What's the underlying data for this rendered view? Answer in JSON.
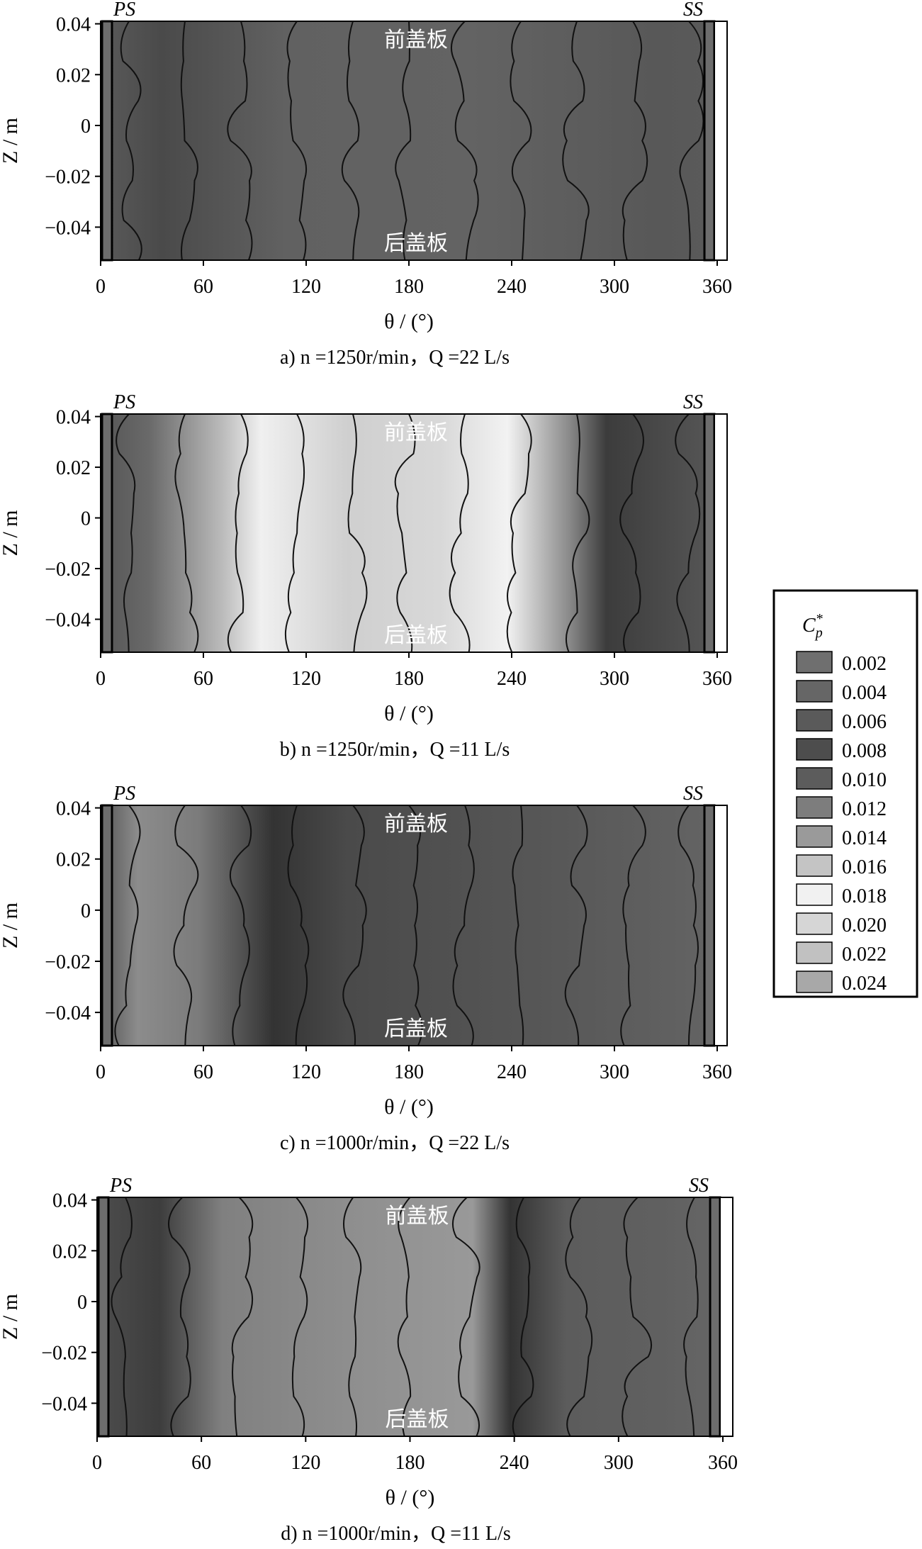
{
  "chart_data": [
    {
      "type": "heatmap",
      "caption": "a) n =1250r/min，Q =22 L/s",
      "xlabel": "θ / (°)",
      "ylabel": "Z / m",
      "xlim": [
        0,
        360
      ],
      "ylim": [
        -0.053,
        0.041
      ],
      "xticks": [
        "0",
        "60",
        "120",
        "180",
        "240",
        "300",
        "360"
      ],
      "yticks": [
        "0.04",
        "0.02",
        "0",
        "−0.02",
        "−0.04"
      ],
      "side_labels": {
        "left": "PS",
        "right": "SS"
      },
      "plate_labels": {
        "top": "前盖板",
        "bottom": "后盖板"
      },
      "background": "#606060",
      "contours": [
        [
          3,
          0.041
        ],
        [
          8,
          0.041
        ],
        [
          10,
          0.041
        ],
        [
          10,
          -0.053
        ],
        [
          60,
          0.041
        ],
        [
          75,
          -0.053
        ],
        [
          120,
          -0.053
        ]
      ]
    },
    {
      "type": "heatmap",
      "caption": "b) n =1250r/min，Q =11 L/s",
      "xlabel": "θ / (°)",
      "ylabel": "Z / m",
      "xlim": [
        0,
        360
      ],
      "ylim": [
        -0.053,
        0.041
      ],
      "xticks": [
        "0",
        "60",
        "120",
        "180",
        "240",
        "300",
        "360"
      ],
      "yticks": [
        "0.04",
        "0.02",
        "0",
        "−0.02",
        "−0.04"
      ],
      "side_labels": {
        "left": "PS",
        "right": "SS"
      },
      "plate_labels": {
        "top": "前盖板",
        "bottom": "后盖板"
      },
      "background": "#5a5a5a",
      "contours": []
    },
    {
      "type": "heatmap",
      "caption": "c) n =1000r/min，Q =22 L/s",
      "xlabel": "θ / (°)",
      "ylabel": "Z / m",
      "xlim": [
        0,
        360
      ],
      "ylim": [
        -0.053,
        0.041
      ],
      "xticks": [
        "0",
        "60",
        "120",
        "180",
        "240",
        "300",
        "360"
      ],
      "yticks": [
        "0.04",
        "0.02",
        "0",
        "−0.02",
        "−0.04"
      ],
      "side_labels": {
        "left": "PS",
        "right": "SS"
      },
      "plate_labels": {
        "top": "前盖板",
        "bottom": "后盖板"
      },
      "background": "#5e5e5e",
      "contours": []
    },
    {
      "type": "heatmap",
      "caption": "d) n =1000r/min，Q =11 L/s",
      "xlabel": "θ / (°)",
      "ylabel": "Z / m",
      "xlim": [
        0,
        360
      ],
      "ylim": [
        -0.053,
        0.041
      ],
      "xticks": [
        "0",
        "60",
        "120",
        "180",
        "240",
        "300",
        "360"
      ],
      "yticks": [
        "0.04",
        "0.02",
        "0",
        "−0.02",
        "−0.04"
      ],
      "side_labels": {
        "left": "PS",
        "right": "SS"
      },
      "plate_labels": {
        "top": "前盖板",
        "bottom": "后盖板"
      },
      "background": "#6a6a6a",
      "contours": []
    }
  ],
  "legend": {
    "title_base": "C",
    "title_sub": "p",
    "title_sup": "*",
    "items": [
      {
        "label": "0.002",
        "color": "#6f6f6f"
      },
      {
        "label": "0.004",
        "color": "#666666"
      },
      {
        "label": "0.006",
        "color": "#5a5a5a"
      },
      {
        "label": "0.008",
        "color": "#4d4d4d"
      },
      {
        "label": "0.010",
        "color": "#5c5c5c"
      },
      {
        "label": "0.012",
        "color": "#7d7d7d"
      },
      {
        "label": "0.014",
        "color": "#9a9a9a"
      },
      {
        "label": "0.016",
        "color": "#c4c4c4"
      },
      {
        "label": "0.018",
        "color": "#f1f1f1"
      },
      {
        "label": "0.020",
        "color": "#d6d6d6"
      },
      {
        "label": "0.022",
        "color": "#c1c1c1"
      },
      {
        "label": "0.024",
        "color": "#a8a8a8"
      }
    ]
  }
}
